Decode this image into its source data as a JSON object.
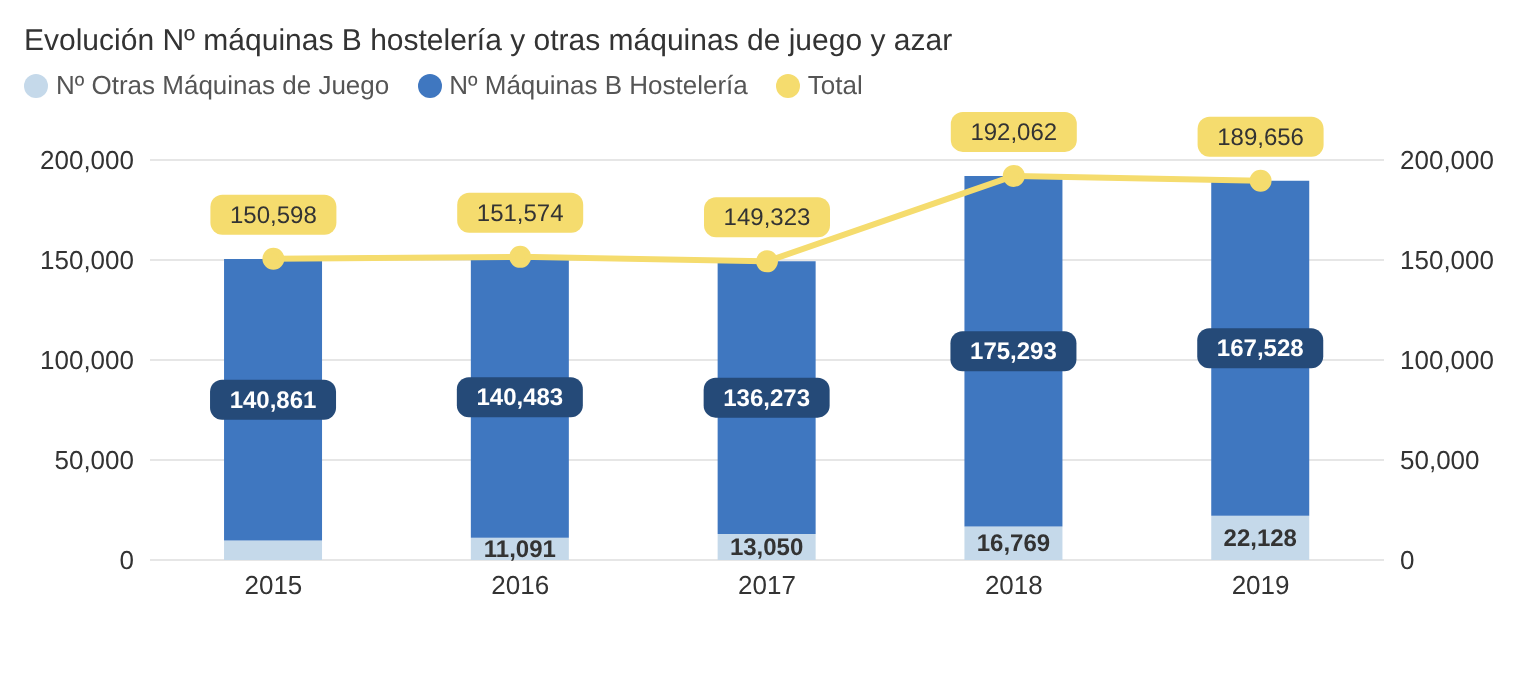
{
  "chart_data": {
    "type": "bar",
    "title": "Evolución Nº máquinas B hostelería y otras máquinas de juego y azar",
    "categories": [
      "2015",
      "2016",
      "2017",
      "2018",
      "2019"
    ],
    "stacked": true,
    "series": [
      {
        "name": "Nº Otras Máquinas de Juego",
        "color": "#c5d9ea",
        "values": [
          9700,
          11091,
          13050,
          16769,
          22128
        ],
        "value_labels": [
          null,
          "11,091",
          "13,050",
          "16,769",
          "22,128"
        ]
      },
      {
        "name": "Nº Máquinas B Hostelería",
        "color": "#3f77c0",
        "values": [
          140861,
          140483,
          136273,
          175293,
          167528
        ],
        "value_labels": [
          "140,861",
          "140,483",
          "136,273",
          "175,293",
          "167,528"
        ]
      },
      {
        "name": "Total",
        "type": "line",
        "color": "#f5dc6e",
        "values": [
          150598,
          151574,
          149323,
          192062,
          189656
        ],
        "value_labels": [
          "150,598",
          "151,574",
          "149,323",
          "192,062",
          "189,656"
        ]
      }
    ],
    "ylim": [
      0,
      200000
    ],
    "yticks": [
      {
        "value": 0,
        "label": "0"
      },
      {
        "value": 50000,
        "label": "50,000"
      },
      {
        "value": 100000,
        "label": "100,000"
      },
      {
        "value": 150000,
        "label": "150,000"
      },
      {
        "value": 200000,
        "label": "200,000"
      }
    ],
    "y2lim": [
      0,
      200000
    ],
    "y2ticks": [
      {
        "value": 0,
        "label": "0"
      },
      {
        "value": 50000,
        "label": "50,000"
      },
      {
        "value": 100000,
        "label": "100,000"
      },
      {
        "value": 150000,
        "label": "150,000"
      },
      {
        "value": 200000,
        "label": "200,000"
      }
    ],
    "grid": "y",
    "legend": "top left",
    "marker": "circle"
  }
}
